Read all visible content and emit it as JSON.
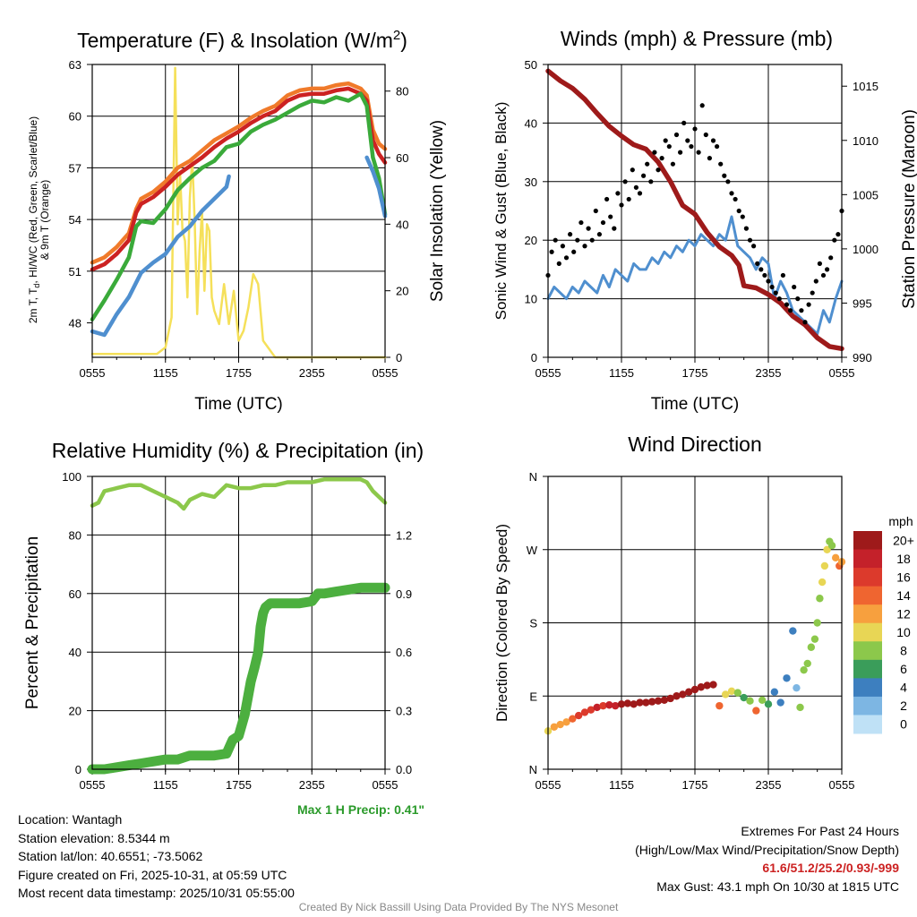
{
  "colors": {
    "t2m": "#cc2222",
    "td": "#4f8fcf",
    "hiwc": "#3aaa3a",
    "t9m": "#f07a2a",
    "solar": "#f5e05a",
    "wind": "#4f8fcf",
    "gust": "#000000",
    "pressure": "#9e1a1a",
    "rh": "#8cc84b",
    "precip": "#4caf3f",
    "extremes": "#cc2222",
    "maxprecip": "#2a9a2a"
  },
  "chart_data": [
    {
      "id": "temp",
      "type": "line",
      "title": "Temperature (F) & Insolation (W/m",
      "title_sup": "2",
      "title_end": ")",
      "xlabel": "Time (UTC)",
      "ylabel_line1": "2m T, T",
      "ylabel_sub": "d",
      "ylabel_line1_end": ", HI/WC (Red, Green, Scarlet/Blue)",
      "ylabel_line2": "& 9m T (Orange)",
      "y2label": "Solar Insolation (Yellow)",
      "xlim": [
        0,
        24
      ],
      "ylim": [
        46,
        63
      ],
      "y2lim": [
        0,
        88
      ],
      "xticks": [
        0,
        6,
        12,
        18,
        24
      ],
      "xticklabels": [
        "0555",
        "1155",
        "1755",
        "2355",
        "0555"
      ],
      "yticks": [
        48,
        51,
        54,
        57,
        60,
        63
      ],
      "y2ticks": [
        0,
        20,
        40,
        60,
        80
      ],
      "series": [
        {
          "name": "9m T",
          "color": "t9m",
          "x": [
            0,
            1,
            2,
            3,
            3.6,
            4,
            5,
            6,
            7,
            8,
            9,
            10,
            11,
            12,
            13,
            14,
            15,
            16,
            17,
            18,
            19,
            20,
            21,
            22,
            22.5,
            23,
            23.5,
            24
          ],
          "y": [
            51.5,
            51.8,
            52.4,
            53.2,
            54.6,
            55.2,
            55.6,
            56.2,
            57.0,
            57.4,
            58.0,
            58.6,
            59.0,
            59.4,
            59.9,
            60.3,
            60.6,
            61.2,
            61.5,
            61.6,
            61.6,
            61.8,
            61.9,
            61.6,
            61.2,
            59.2,
            58.4,
            58.1
          ]
        },
        {
          "name": "2m T",
          "color": "t2m",
          "x": [
            0,
            1,
            2,
            3,
            3.6,
            4,
            5,
            6,
            7,
            8,
            9,
            10,
            11,
            12,
            13,
            14,
            15,
            16,
            17,
            18,
            19,
            20,
            21,
            22,
            22.5,
            23,
            23.5,
            24
          ],
          "y": [
            51.1,
            51.4,
            52.0,
            52.8,
            54.4,
            54.9,
            55.3,
            55.9,
            56.6,
            57.1,
            57.6,
            58.2,
            58.7,
            59.1,
            59.6,
            60.0,
            60.3,
            60.9,
            61.2,
            61.3,
            61.3,
            61.5,
            61.6,
            61.3,
            60.9,
            58.6,
            57.8,
            57.3
          ]
        },
        {
          "name": "HI/WC",
          "color": "hiwc",
          "x": [
            0,
            1,
            2,
            3,
            3.6,
            4,
            5,
            6,
            7,
            8,
            9,
            10,
            11,
            12,
            13,
            14,
            15,
            16,
            17,
            18,
            19,
            20,
            21,
            22,
            22.5,
            23,
            23.5,
            24
          ],
          "y": [
            48.2,
            49.3,
            50.5,
            51.8,
            53.6,
            53.9,
            53.8,
            54.6,
            55.7,
            56.4,
            57.0,
            57.4,
            58.2,
            58.4,
            59.1,
            59.5,
            59.8,
            60.2,
            60.6,
            60.9,
            60.8,
            61.1,
            60.9,
            61.3,
            60.6,
            57.6,
            56.4,
            54.3
          ]
        },
        {
          "name": "Td",
          "color": "td",
          "x": [
            0,
            1,
            2,
            3,
            4,
            5,
            6,
            7,
            8,
            9,
            10,
            11,
            11.2
          ],
          "y": [
            47.5,
            47.3,
            48.5,
            49.5,
            50.9,
            51.5,
            52.0,
            53.0,
            53.6,
            54.5,
            55.2,
            55.9,
            56.5
          ]
        },
        {
          "name": "Td late",
          "color": "td",
          "x": [
            22.5,
            23,
            23.5,
            24
          ],
          "y": [
            57.6,
            56.8,
            55.8,
            54.2
          ]
        }
      ],
      "solar": {
        "name": "Solar Insolation",
        "color": "solar",
        "x": [
          0,
          2,
          4,
          5.3,
          6,
          6.5,
          6.8,
          7.0,
          7.2,
          7.4,
          7.6,
          7.8,
          8.0,
          8.2,
          8.4,
          8.6,
          8.8,
          9.0,
          9.2,
          9.4,
          9.6,
          9.8,
          10.0,
          10.4,
          10.8,
          11.2,
          11.6,
          12.0,
          12.4,
          12.8,
          13.2,
          13.6,
          14.0,
          14.4,
          14.8,
          15.0,
          16,
          18,
          20,
          22,
          24
        ],
        "y": [
          1,
          1,
          1,
          1,
          3,
          12,
          87,
          40,
          55,
          38,
          35,
          18,
          48,
          60,
          40,
          13,
          32,
          44,
          20,
          40,
          38,
          18,
          14,
          10,
          22,
          10,
          20,
          5,
          8,
          15,
          25,
          22,
          5,
          3,
          1,
          0,
          0,
          0,
          0,
          0,
          0
        ]
      }
    },
    {
      "id": "wind",
      "type": "line",
      "title": "Winds (mph) & Pressure (mb)",
      "xlabel": "Time (UTC)",
      "ylabel": "Sonic Wind & Gust (Blue, Black)",
      "y2label": "Station Pressure (Maroon)",
      "xlim": [
        0,
        24
      ],
      "ylim": [
        0,
        50
      ],
      "y2lim": [
        990,
        1017
      ],
      "xticks": [
        0,
        6,
        12,
        18,
        24
      ],
      "xticklabels": [
        "0555",
        "1155",
        "1755",
        "2355",
        "0555"
      ],
      "yticks": [
        0,
        10,
        20,
        30,
        40,
        50
      ],
      "y2ticks": [
        990,
        995,
        1000,
        1005,
        1010,
        1015
      ],
      "wind": {
        "name": "Sonic Wind",
        "color": "wind",
        "x": [
          0,
          0.5,
          1,
          1.5,
          2,
          2.5,
          3,
          3.5,
          4,
          4.5,
          5,
          5.5,
          6,
          6.5,
          7,
          7.5,
          8,
          8.5,
          9,
          9.5,
          10,
          10.5,
          11,
          11.5,
          12,
          12.5,
          13,
          13.5,
          14,
          14.5,
          15,
          15.5,
          16,
          16.5,
          17,
          17.5,
          18,
          18.5,
          19,
          19.5,
          20,
          20.5,
          21,
          21.5,
          22,
          22.5,
          23,
          23.5,
          24
        ],
        "y": [
          10,
          12,
          11,
          10,
          12,
          11,
          13,
          12,
          11,
          14,
          12,
          15,
          14,
          13,
          16,
          15,
          15,
          17,
          16,
          18,
          17,
          19,
          18,
          20,
          19,
          21,
          20,
          19,
          21,
          20,
          24,
          19,
          18,
          17,
          15,
          17,
          16,
          10,
          13,
          11,
          8,
          7,
          6,
          5,
          4,
          8,
          6,
          10,
          13
        ]
      },
      "pressure": {
        "name": "Station Pressure",
        "color": "pressure",
        "x": [
          0,
          1,
          2,
          3,
          4,
          5,
          6,
          7,
          8,
          9,
          10,
          11,
          12,
          13,
          14,
          15,
          15.6,
          16,
          17,
          18,
          19,
          20,
          21,
          22,
          23,
          24
        ],
        "y": [
          1016.4,
          1015.5,
          1014.8,
          1013.8,
          1012.5,
          1011.3,
          1010.4,
          1009.6,
          1009.2,
          1008.0,
          1006.2,
          1004.0,
          1003.2,
          1001.5,
          1000.2,
          999.4,
          998.5,
          996.6,
          996.4,
          995.8,
          995.0,
          993.8,
          993.0,
          991.8,
          991.0,
          990.8
        ]
      },
      "gust": {
        "name": "Gust",
        "color": "gust",
        "x": [
          0,
          0.3,
          0.6,
          0.9,
          1.2,
          1.5,
          1.8,
          2.1,
          2.4,
          2.7,
          3.0,
          3.3,
          3.6,
          3.9,
          4.2,
          4.5,
          4.8,
          5.1,
          5.4,
          5.7,
          6.0,
          6.3,
          6.6,
          6.9,
          7.2,
          7.5,
          7.8,
          8.1,
          8.4,
          8.7,
          9.0,
          9.3,
          9.6,
          9.9,
          10.2,
          10.5,
          10.8,
          11.1,
          11.4,
          11.7,
          12.0,
          12.3,
          12.6,
          12.9,
          13.2,
          13.5,
          13.8,
          14.1,
          14.4,
          14.7,
          15.0,
          15.3,
          15.6,
          15.9,
          16.2,
          16.5,
          16.8,
          17.1,
          17.4,
          17.7,
          18.0,
          18.3,
          18.6,
          18.9,
          19.2,
          19.5,
          19.8,
          20.1,
          20.4,
          20.7,
          21.0,
          21.3,
          21.6,
          21.9,
          22.2,
          22.5,
          22.8,
          23.1,
          23.4,
          23.7,
          24.0
        ],
        "y": [
          14,
          18,
          20,
          16,
          19,
          17,
          21,
          18,
          20,
          23,
          19,
          22,
          20,
          25,
          21,
          23,
          27,
          24,
          22,
          28,
          26,
          30,
          27,
          32,
          29,
          28,
          31,
          33,
          30,
          35,
          32,
          34,
          37,
          36,
          33,
          38,
          35,
          40,
          37,
          36,
          39,
          35,
          43,
          38,
          34,
          37,
          36,
          33,
          31,
          30,
          28,
          27,
          25,
          24,
          22,
          20,
          19,
          16,
          15,
          14,
          13,
          12,
          11,
          10,
          14,
          9,
          8,
          12,
          10,
          8,
          6,
          9,
          11,
          13,
          16,
          14,
          15,
          17,
          20,
          21,
          25
        ]
      }
    },
    {
      "id": "rh",
      "type": "line",
      "title": "Relative Humidity (%) & Precipitation (in)",
      "ylabel": "Percent & Precipitation",
      "xlim": [
        0,
        24
      ],
      "ylim": [
        0,
        100
      ],
      "y2lim": [
        0,
        1.5
      ],
      "xticks": [
        0,
        6,
        12,
        18,
        24
      ],
      "xticklabels": [
        "0555",
        "1155",
        "1755",
        "2355",
        "0555"
      ],
      "yticks": [
        0,
        20,
        40,
        60,
        80,
        100
      ],
      "y2ticks": [
        0.0,
        0.3,
        0.6,
        0.9,
        1.2
      ],
      "y2ticklabels": [
        "0.0",
        "0.3",
        "0.6",
        "0.9",
        "1.2"
      ],
      "max_precip_label": "Max 1 H Precip: 0.41\"",
      "rh": {
        "name": "Relative Humidity",
        "color": "rh",
        "x": [
          0,
          0.5,
          1,
          2,
          3,
          4,
          5,
          6,
          7,
          7.5,
          8,
          9,
          10,
          11,
          12,
          13,
          14,
          15,
          16,
          17,
          18,
          19,
          20,
          21,
          22,
          22.5,
          23,
          23.5,
          24
        ],
        "y": [
          90,
          91,
          95,
          96,
          97,
          97,
          95,
          93,
          91,
          89,
          92,
          94,
          93,
          97,
          96,
          96,
          97,
          97,
          98,
          98,
          98,
          99,
          99,
          99,
          99,
          98,
          95,
          93,
          91
        ]
      },
      "precip": {
        "name": "Precipitation",
        "color": "precip",
        "x": [
          0,
          1,
          2,
          3,
          4,
          5,
          6,
          7,
          8,
          9,
          10,
          11,
          11.5,
          12,
          12.5,
          13,
          13.3,
          13.6,
          13.8,
          14.0,
          14.2,
          14.4,
          14.6,
          15,
          16,
          17,
          18,
          18.5,
          19,
          20,
          21,
          22,
          23,
          24
        ],
        "y": [
          0,
          0,
          0.01,
          0.02,
          0.03,
          0.04,
          0.05,
          0.05,
          0.07,
          0.07,
          0.07,
          0.08,
          0.15,
          0.17,
          0.28,
          0.45,
          0.52,
          0.6,
          0.73,
          0.8,
          0.83,
          0.84,
          0.85,
          0.85,
          0.85,
          0.85,
          0.86,
          0.9,
          0.9,
          0.91,
          0.92,
          0.93,
          0.93,
          0.93
        ]
      }
    },
    {
      "id": "dir",
      "type": "scatter",
      "title": "Wind Direction",
      "ylabel": "Direction (Colored By Speed)",
      "xlim": [
        0,
        24
      ],
      "ylim": [
        0,
        360
      ],
      "xticks": [
        0,
        6,
        12,
        18,
        24
      ],
      "xticklabels": [
        "0555",
        "1155",
        "1755",
        "2355",
        "0555"
      ],
      "yticks": [
        0,
        90,
        180,
        270,
        360
      ],
      "yticklabels": [
        "N",
        "E",
        "S",
        "W",
        "N"
      ],
      "colorbar_title": "mph",
      "colorbar_labels": [
        "20+",
        "18",
        "16",
        "14",
        "12",
        "10",
        "8",
        "6",
        "4",
        "2",
        "0"
      ],
      "colorbar_colors": [
        "#9e1a1a",
        "#c4212a",
        "#dc3a2c",
        "#ef6530",
        "#f7a03e",
        "#e8d655",
        "#8cc84b",
        "#3a9d5a",
        "#3d7fbf",
        "#7db6e3",
        "#bfe1f6"
      ],
      "x": [
        0,
        0.5,
        1,
        1.5,
        2,
        2.5,
        3,
        3.5,
        4,
        4.5,
        5,
        5.5,
        6,
        6.5,
        7,
        7.5,
        8,
        8.5,
        9,
        9.5,
        10,
        10.5,
        11,
        11.5,
        12,
        12.5,
        13,
        13.5,
        14,
        14.5,
        15,
        15.5,
        16,
        16.5,
        17,
        17.5,
        18,
        18.5,
        19,
        19.5,
        20,
        20.3,
        20.6,
        20.9,
        21.2,
        21.5,
        21.8,
        22,
        22.2,
        22.4,
        22.6,
        22.8,
        23,
        23.2,
        23.5,
        23.8,
        24
      ],
      "y": [
        47,
        52,
        55,
        58,
        62,
        66,
        70,
        73,
        76,
        78,
        79,
        78,
        80,
        81,
        80,
        82,
        82,
        83,
        84,
        85,
        87,
        90,
        92,
        95,
        98,
        101,
        103,
        104,
        78,
        92,
        96,
        94,
        88,
        84,
        72,
        85,
        80,
        95,
        82,
        112,
        170,
        100,
        76,
        122,
        130,
        150,
        160,
        180,
        210,
        230,
        250,
        270,
        280,
        275,
        260,
        250,
        255
      ],
      "speeds": [
        10,
        11,
        12,
        11,
        13,
        15,
        15,
        16,
        17,
        16,
        18,
        18,
        19,
        19,
        19,
        20,
        20,
        20,
        20,
        21,
        21,
        21,
        20,
        21,
        20,
        20,
        20,
        20,
        13,
        10,
        9,
        8,
        6,
        8,
        14,
        8,
        6,
        4,
        4,
        3,
        3,
        2,
        7,
        7,
        8,
        8,
        8,
        8,
        8,
        10,
        10,
        10,
        8,
        7,
        12,
        13,
        12
      ]
    }
  ],
  "info": {
    "location": "Location: Wantagh",
    "elevation": "Station elevation: 8.5344 m",
    "latlon": "Station lat/lon: 40.6551; -73.5062",
    "created": "Figure created on Fri, 2025-10-31, at 05:59 UTC",
    "recent": "Most recent data timestamp: 2025/10/31 05:55:00"
  },
  "extremes": {
    "title": "Extremes For Past 24 Hours",
    "subtitle": "(High/Low/Max Wind/Precipitation/Snow Depth)",
    "values": "61.6/51.2/25.2/0.93/-999",
    "gust": "Max Gust: 43.1 mph On 10/30 at 1815 UTC"
  },
  "credit": "Created By Nick Bassill Using Data Provided By The NYS Mesonet"
}
